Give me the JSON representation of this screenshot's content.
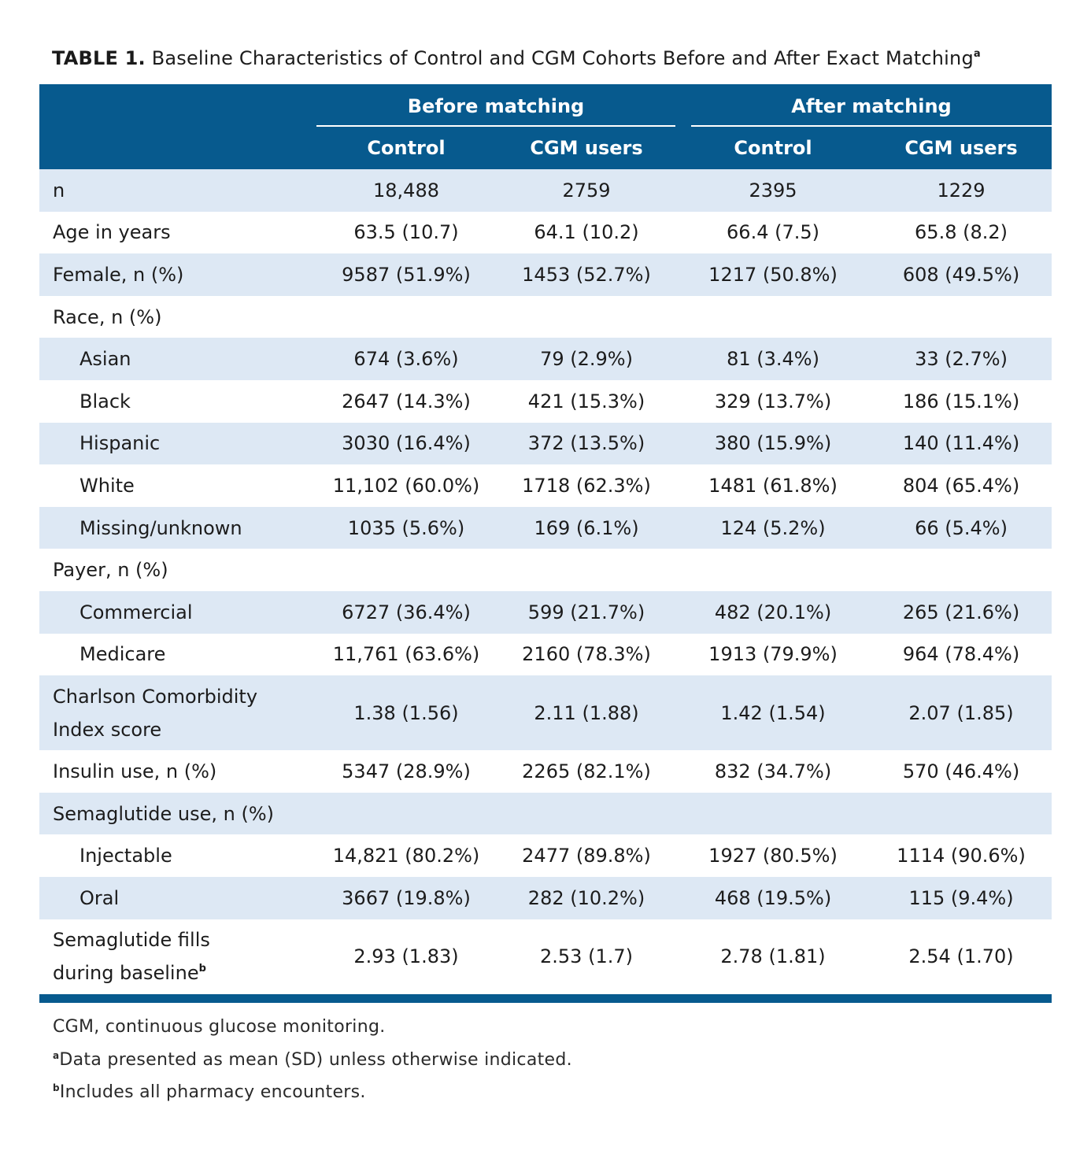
{
  "title": {
    "label": "TABLE 1.",
    "text": "Baseline Characteristics of Control and CGM Cohorts Before and After Exact Matching",
    "note": "a"
  },
  "table": {
    "groups": [
      "Before matching",
      "After matching"
    ],
    "columns": [
      "Control",
      "CGM users",
      "Control",
      "CGM users"
    ],
    "rows": [
      {
        "label": "n",
        "values": [
          "18,488",
          "2759",
          "2395",
          "1229"
        ]
      },
      {
        "label": "Age in years",
        "values": [
          "63.5 (10.7)",
          "64.1 (10.2)",
          "66.4 (7.5)",
          "65.8 (8.2)"
        ]
      },
      {
        "label": "Female, n (%)",
        "values": [
          "9587 (51.9%)",
          "1453 (52.7%)",
          "1217 (50.8%)",
          "608 (49.5%)"
        ]
      },
      {
        "label": "Race, n (%)",
        "subrows": [
          {
            "label": "Asian",
            "values": [
              "674 (3.6%)",
              "79 (2.9%)",
              "81 (3.4%)",
              "33 (2.7%)"
            ]
          },
          {
            "label": "Black",
            "values": [
              "2647 (14.3%)",
              "421 (15.3%)",
              "329 (13.7%)",
              "186 (15.1%)"
            ]
          },
          {
            "label": "Hispanic",
            "values": [
              "3030 (16.4%)",
              "372 (13.5%)",
              "380 (15.9%)",
              "140 (11.4%)"
            ]
          },
          {
            "label": "White",
            "values": [
              "11,102 (60.0%)",
              "1718 (62.3%)",
              "1481 (61.8%)",
              "804 (65.4%)"
            ]
          },
          {
            "label": "Missing/unknown",
            "values": [
              "1035 (5.6%)",
              "169 (6.1%)",
              "124 (5.2%)",
              "66 (5.4%)"
            ]
          }
        ]
      },
      {
        "label": "Payer, n (%)",
        "subrows": [
          {
            "label": "Commercial",
            "values": [
              "6727 (36.4%)",
              "599 (21.7%)",
              "482 (20.1%)",
              "265 (21.6%)"
            ]
          },
          {
            "label": "Medicare",
            "values": [
              "11,761 (63.6%)",
              "2160 (78.3%)",
              "1913 (79.9%)",
              "964 (78.4%)"
            ]
          }
        ]
      },
      {
        "label": [
          "Charlson Comorbidity",
          "Index score"
        ],
        "values": [
          "1.38 (1.56)",
          "2.11 (1.88)",
          "1.42 (1.54)",
          "2.07 (1.85)"
        ]
      },
      {
        "label": "Insulin use, n (%)",
        "values": [
          "5347 (28.9%)",
          "2265 (82.1%)",
          "832 (34.7%)",
          "570 (46.4%)"
        ]
      },
      {
        "label": "Semaglutide use, n (%)",
        "subrows": [
          {
            "label": "Injectable",
            "values": [
              "14,821 (80.2%)",
              "2477 (89.8%)",
              "1927 (80.5%)",
              "1114 (90.6%)"
            ]
          },
          {
            "label": "Oral",
            "values": [
              "3667 (19.8%)",
              "282 (10.2%)",
              "468 (19.5%)",
              "115 (9.4%)"
            ]
          }
        ]
      },
      {
        "label": [
          "Semaglutide fills",
          "during baseline"
        ],
        "note": "b",
        "values": [
          "2.93 (1.83)",
          "2.53 (1.7)",
          "2.78 (1.81)",
          "2.54 (1.70)"
        ]
      }
    ]
  },
  "footnotes": [
    {
      "text": "CGM, continuous glucose monitoring."
    },
    {
      "mark": "a",
      "text": "Data presented as mean (SD) unless otherwise indicated."
    },
    {
      "mark": "b",
      "text": "Includes all pharmacy encounters."
    }
  ]
}
